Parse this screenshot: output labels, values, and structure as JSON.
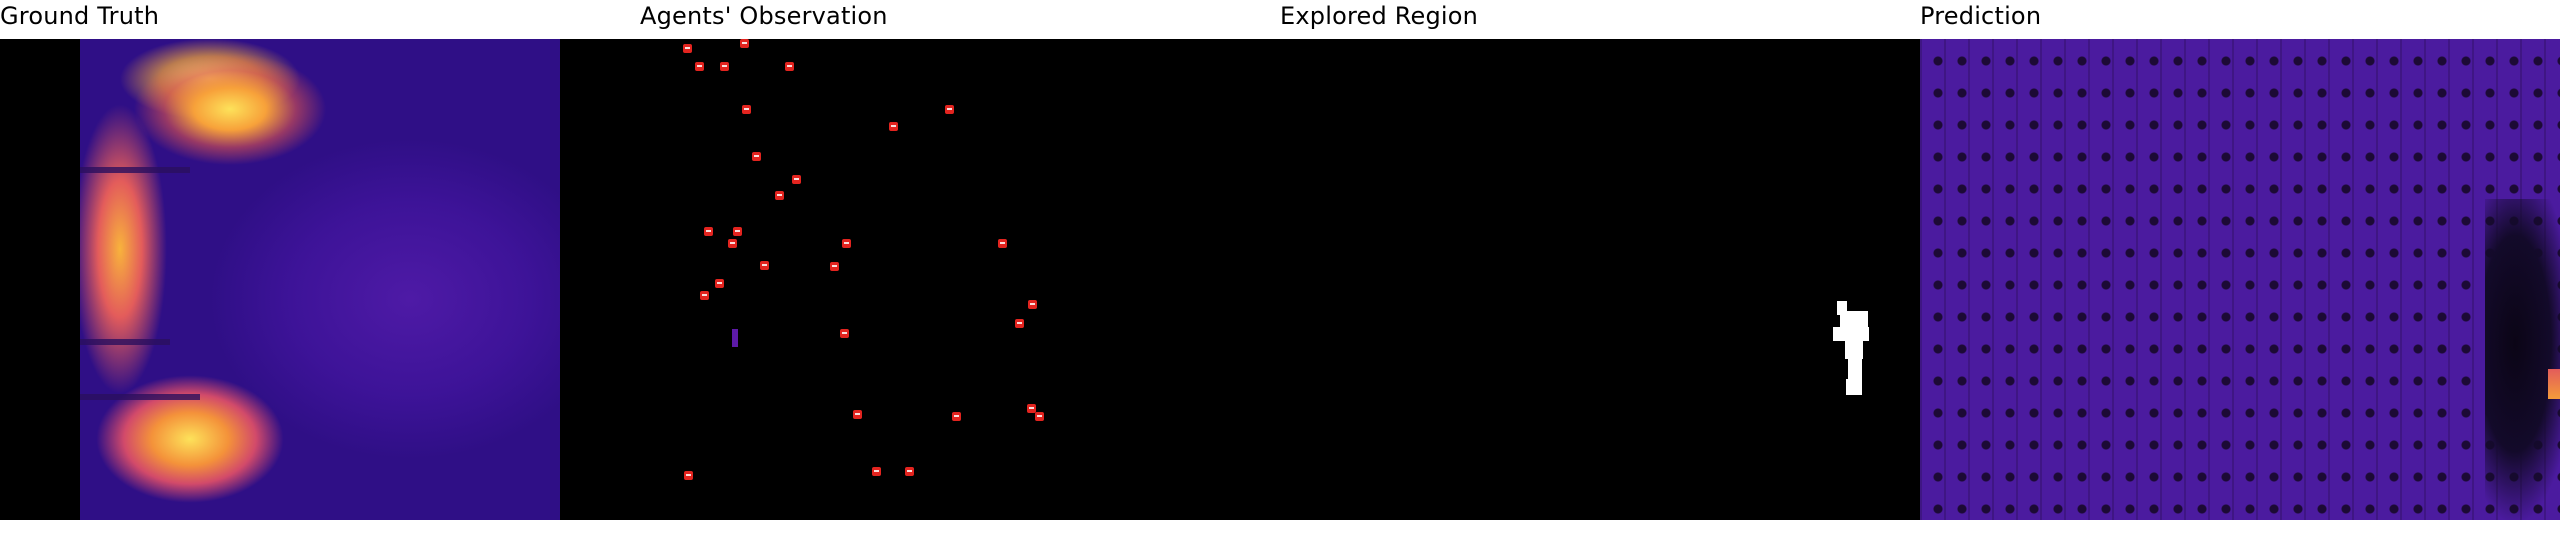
{
  "panels": [
    {
      "title": "Ground Truth"
    },
    {
      "title": "Agents' Observation"
    },
    {
      "title": "Explored Region"
    },
    {
      "title": "Prediction"
    }
  ],
  "colors": {
    "background": "#000000",
    "agent_marker": "#e3241f",
    "explored": "#ffffff",
    "heatmap_low": "#3a1495",
    "heatmap_high": "#fde25a"
  },
  "agents": {
    "count": 30
  }
}
